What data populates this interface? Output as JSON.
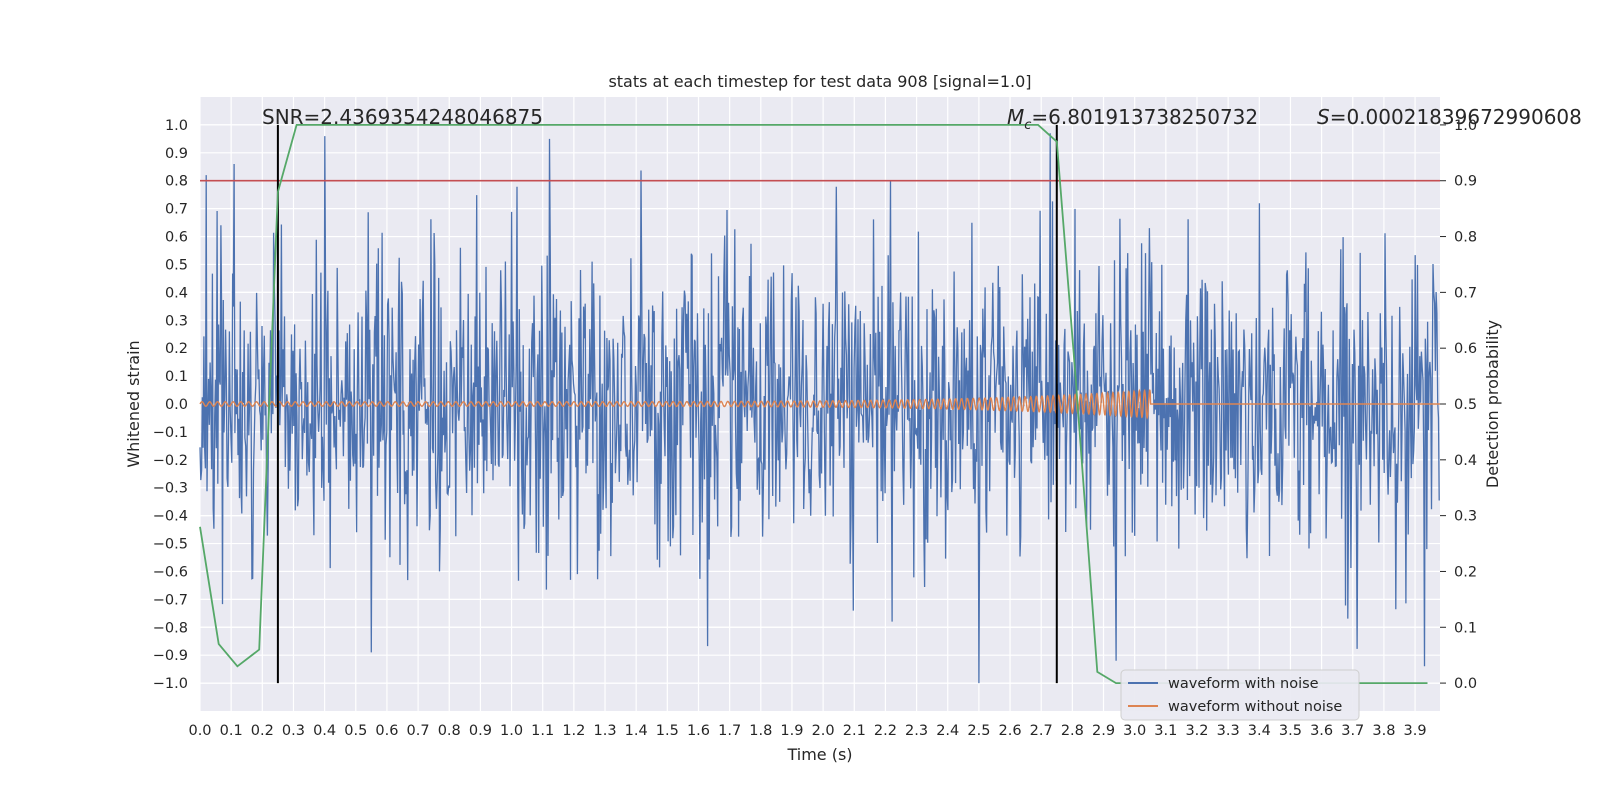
{
  "chart_data": {
    "type": "line",
    "title": "stats at each timestep for test data 908 [signal=1.0]",
    "xlabel": "Time (s)",
    "ylabel": "Whitened strain",
    "y2label": "Detection probability",
    "xlim": [
      0.0,
      3.98
    ],
    "ylim": [
      -1.1,
      1.1
    ],
    "y2lim": [
      -0.05,
      1.05
    ],
    "xticks": [
      "0.0",
      "0.1",
      "0.2",
      "0.3",
      "0.4",
      "0.5",
      "0.6",
      "0.7",
      "0.8",
      "0.9",
      "1.0",
      "1.1",
      "1.2",
      "1.3",
      "1.4",
      "1.5",
      "1.6",
      "1.7",
      "1.8",
      "1.9",
      "2.0",
      "2.1",
      "2.2",
      "2.3",
      "2.4",
      "2.5",
      "2.6",
      "2.7",
      "2.8",
      "2.9",
      "3.0",
      "3.1",
      "3.2",
      "3.3",
      "3.4",
      "3.5",
      "3.6",
      "3.7",
      "3.8",
      "3.9"
    ],
    "yticks": [
      "1.0",
      "0.9",
      "0.8",
      "0.7",
      "0.6",
      "0.5",
      "0.4",
      "0.3",
      "0.2",
      "0.1",
      "0.0",
      "−0.1",
      "−0.2",
      "−0.3",
      "−0.4",
      "−0.5",
      "−0.6",
      "−0.7",
      "−0.8",
      "−0.9",
      "−1.0"
    ],
    "y2ticks": [
      "1.0",
      "0.9",
      "0.8",
      "0.7",
      "0.6",
      "0.5",
      "0.4",
      "0.3",
      "0.2",
      "0.1",
      "0.0"
    ],
    "grid": true,
    "legend_position": "lower-right",
    "annotations": {
      "snr": "SNR=2.4369354248046875",
      "mc_symbol": "M",
      "mc_subscript": "c",
      "mc_value": "=6.801913738250732",
      "s_symbol": "S",
      "s_value": "=0.00021839672990608"
    },
    "threshold": {
      "value": 0.9,
      "axis": "y2",
      "color": "#c44e52"
    },
    "vertical_lines": [
      0.25,
      2.75
    ],
    "series": [
      {
        "name": "waveform with noise",
        "color": "#4c72b0",
        "kind": "noise",
        "samples": 1600,
        "std": 0.26,
        "peaks_high": [
          [
            0.02,
            0.82
          ],
          [
            0.11,
            0.86
          ],
          [
            0.4,
            0.96
          ],
          [
            2.73,
            0.97
          ]
        ],
        "peaks_low": [
          [
            2.5,
            -1.0
          ],
          [
            0.55,
            -0.89
          ],
          [
            2.94,
            -0.92
          ],
          [
            3.93,
            -0.94
          ]
        ]
      },
      {
        "name": "waveform without noise",
        "color": "#dd8452",
        "kind": "chirp",
        "t_merge": 3.05,
        "f_start": 40,
        "f_end": 60,
        "amp_start": 0.008,
        "amp_peak": 0.05
      },
      {
        "name": "",
        "color": "#55a868",
        "axis": "y2",
        "x": [
          0.0,
          0.06,
          0.12,
          0.19,
          0.25,
          0.31,
          0.38,
          2.69,
          2.75,
          2.81,
          2.88,
          2.94,
          3.0,
          3.94
        ],
        "y": [
          0.28,
          0.07,
          0.03,
          0.06,
          0.88,
          1.0,
          1.0,
          1.0,
          0.97,
          0.55,
          0.02,
          0.0,
          0.0,
          0.0
        ]
      }
    ]
  }
}
